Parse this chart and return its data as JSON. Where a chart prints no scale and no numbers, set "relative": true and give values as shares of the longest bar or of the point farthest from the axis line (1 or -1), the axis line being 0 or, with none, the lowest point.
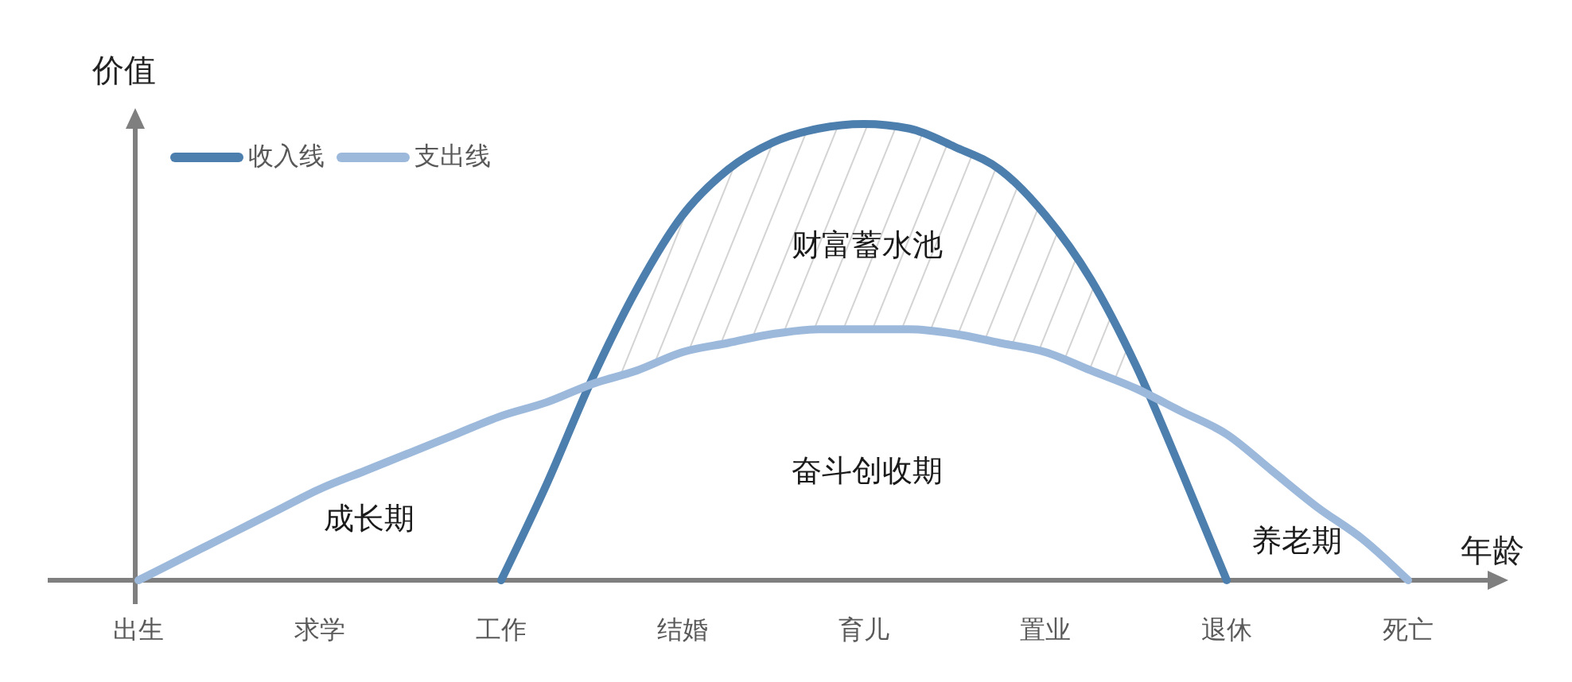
{
  "chart_data": {
    "type": "line",
    "relative": true,
    "xlabel": "年龄",
    "ylabel": "价值",
    "legend": "top left",
    "categories": [
      "出生",
      null,
      null,
      null,
      "求学",
      null,
      null,
      null,
      "工作",
      null,
      null,
      null,
      "结婚",
      null,
      null,
      null,
      "育儿",
      null,
      null,
      null,
      "置业",
      null,
      null,
      null,
      "退休",
      null,
      null,
      null,
      "死亡"
    ],
    "series": [
      {
        "name": "收入线",
        "color": "#4d7fae",
        "values": [
          null,
          null,
          null,
          null,
          null,
          null,
          null,
          null,
          0,
          0.21,
          0.44,
          0.64,
          0.8,
          0.9,
          0.96,
          0.99,
          1,
          0.99,
          0.95,
          0.9,
          0.8,
          0.66,
          0.47,
          0.24,
          0,
          null,
          null,
          null,
          null
        ]
      },
      {
        "name": "支出线",
        "color": "#9cb9dc",
        "values": [
          0,
          0.05,
          0.1,
          0.15,
          0.2,
          0.24,
          0.28,
          0.32,
          0.36,
          0.39,
          0.43,
          0.46,
          0.5,
          0.52,
          0.54,
          0.55,
          0.55,
          0.55,
          0.54,
          0.52,
          0.5,
          0.46,
          0.42,
          0.37,
          0.32,
          0.24,
          0.16,
          0.09,
          0
        ]
      }
    ],
    "annotations": [
      "财富蓄水池",
      "成长期",
      "奋斗创收期",
      "养老期"
    ]
  }
}
